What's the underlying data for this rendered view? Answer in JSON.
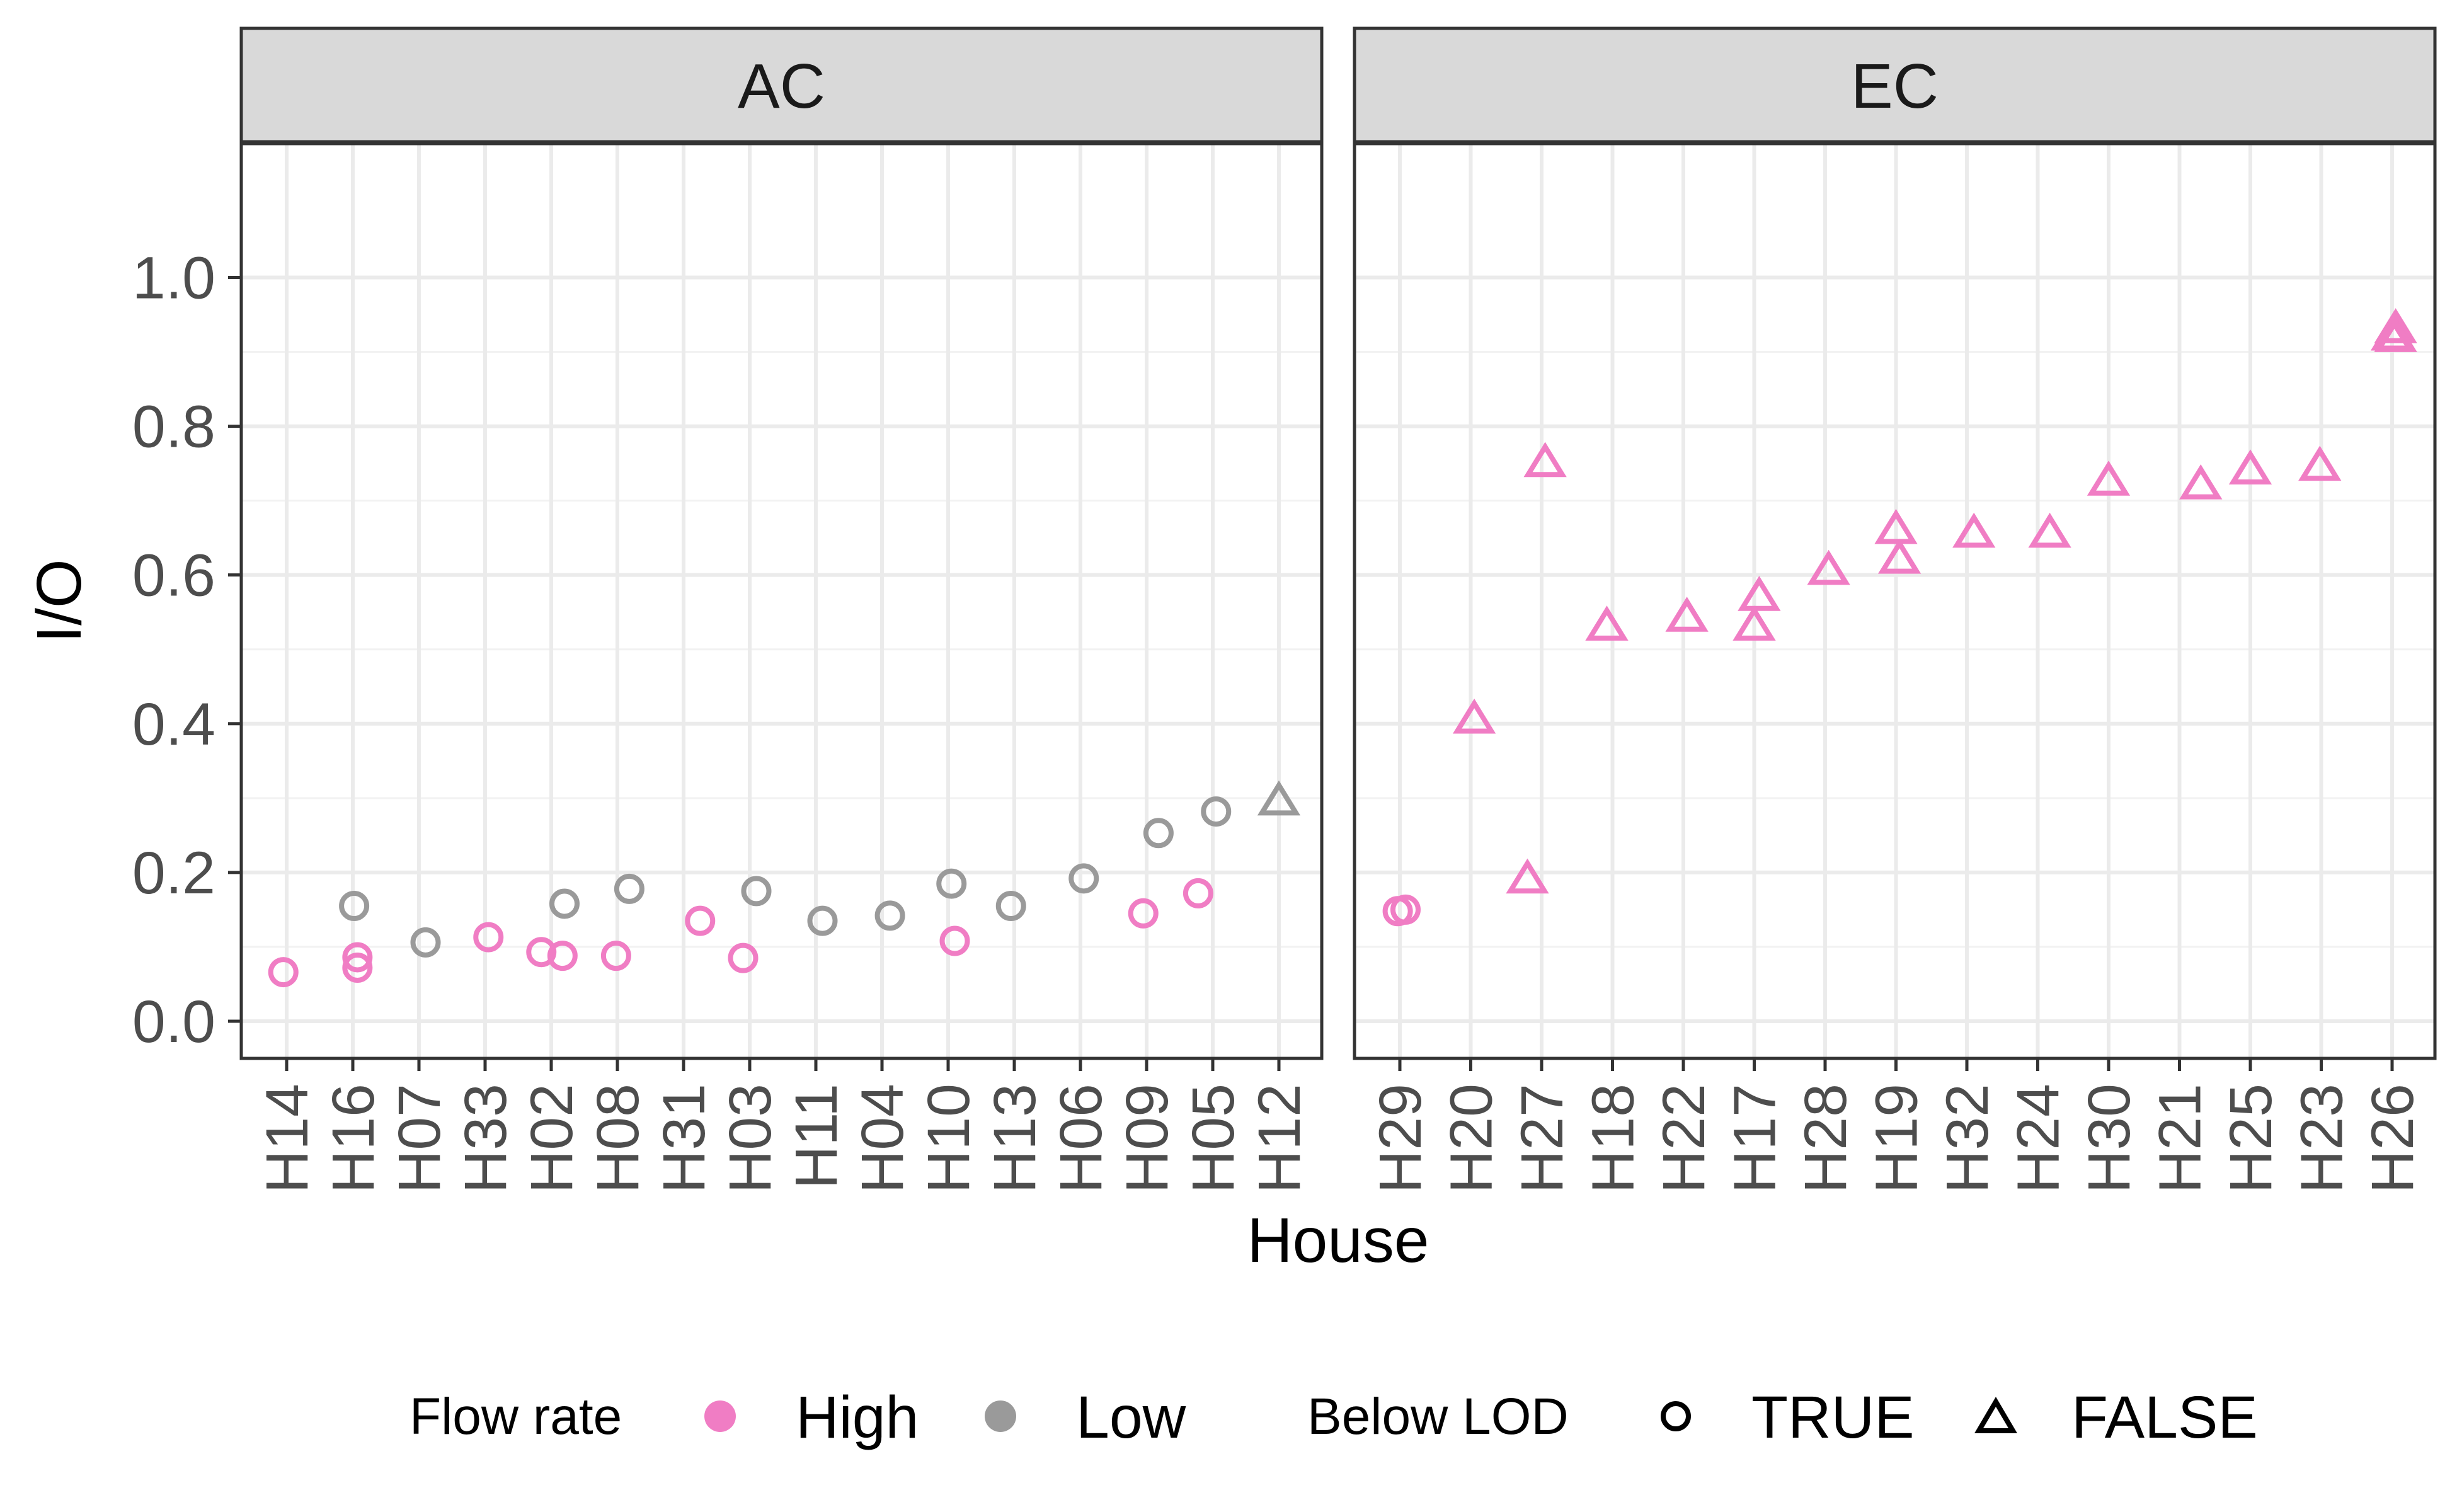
{
  "chart_data": {
    "type": "scatter",
    "ylabel": "I/O",
    "xlabel": "House",
    "ylim": [
      -0.05,
      1.18
    ],
    "y_ticks": [
      0.0,
      0.2,
      0.4,
      0.6,
      0.8,
      1.0
    ],
    "y_tick_labels": [
      "0.0",
      "0.2",
      "0.4",
      "0.6",
      "0.8",
      "1.0"
    ],
    "grid": true,
    "legend_position": "bottom",
    "colors": {
      "High": "#f07dc4",
      "Low": "#9a9a9a"
    },
    "panels": [
      {
        "name": "AC",
        "categories": [
          "H14",
          "H16",
          "H07",
          "H33",
          "H02",
          "H08",
          "H31",
          "H03",
          "H11",
          "H04",
          "H10",
          "H13",
          "H06",
          "H09",
          "H05",
          "H12"
        ],
        "points": [
          {
            "house": "H14",
            "offset": -0.05,
            "y": 0.066,
            "flow": "High",
            "lod": "TRUE"
          },
          {
            "house": "H16",
            "offset": 0.07,
            "y": 0.086,
            "flow": "High",
            "lod": "TRUE"
          },
          {
            "house": "H16",
            "offset": 0.07,
            "y": 0.072,
            "flow": "High",
            "lod": "TRUE"
          },
          {
            "house": "H16",
            "offset": 0.02,
            "y": 0.155,
            "flow": "Low",
            "lod": "TRUE"
          },
          {
            "house": "H07",
            "offset": 0.1,
            "y": 0.106,
            "flow": "Low",
            "lod": "TRUE"
          },
          {
            "house": "H33",
            "offset": 0.05,
            "y": 0.113,
            "flow": "High",
            "lod": "TRUE"
          },
          {
            "house": "H02",
            "offset": -0.15,
            "y": 0.093,
            "flow": "High",
            "lod": "TRUE"
          },
          {
            "house": "H02",
            "offset": 0.17,
            "y": 0.088,
            "flow": "High",
            "lod": "TRUE"
          },
          {
            "house": "H02",
            "offset": 0.2,
            "y": 0.158,
            "flow": "Low",
            "lod": "TRUE"
          },
          {
            "house": "H08",
            "offset": -0.02,
            "y": 0.088,
            "flow": "High",
            "lod": "TRUE"
          },
          {
            "house": "H08",
            "offset": 0.18,
            "y": 0.178,
            "flow": "Low",
            "lod": "TRUE"
          },
          {
            "house": "H31",
            "offset": 0.25,
            "y": 0.135,
            "flow": "High",
            "lod": "TRUE"
          },
          {
            "house": "H03",
            "offset": -0.1,
            "y": 0.085,
            "flow": "High",
            "lod": "TRUE"
          },
          {
            "house": "H03",
            "offset": 0.1,
            "y": 0.175,
            "flow": "Low",
            "lod": "TRUE"
          },
          {
            "house": "H11",
            "offset": 0.1,
            "y": 0.135,
            "flow": "Low",
            "lod": "TRUE"
          },
          {
            "house": "H04",
            "offset": 0.12,
            "y": 0.142,
            "flow": "Low",
            "lod": "TRUE"
          },
          {
            "house": "H10",
            "offset": 0.1,
            "y": 0.108,
            "flow": "High",
            "lod": "TRUE"
          },
          {
            "house": "H10",
            "offset": 0.05,
            "y": 0.185,
            "flow": "Low",
            "lod": "TRUE"
          },
          {
            "house": "H13",
            "offset": -0.05,
            "y": 0.155,
            "flow": "Low",
            "lod": "TRUE"
          },
          {
            "house": "H06",
            "offset": 0.05,
            "y": 0.192,
            "flow": "Low",
            "lod": "TRUE"
          },
          {
            "house": "H09",
            "offset": -0.05,
            "y": 0.145,
            "flow": "High",
            "lod": "TRUE"
          },
          {
            "house": "H09",
            "offset": 0.18,
            "y": 0.253,
            "flow": "Low",
            "lod": "TRUE"
          },
          {
            "house": "H05",
            "offset": -0.22,
            "y": 0.172,
            "flow": "High",
            "lod": "TRUE"
          },
          {
            "house": "H05",
            "offset": 0.05,
            "y": 0.282,
            "flow": "Low",
            "lod": "TRUE"
          },
          {
            "house": "H12",
            "offset": 0.0,
            "y": 0.295,
            "flow": "Low",
            "lod": "FALSE"
          }
        ]
      },
      {
        "name": "EC",
        "categories": [
          "H29",
          "H20",
          "H27",
          "H18",
          "H22",
          "H17",
          "H28",
          "H19",
          "H32",
          "H24",
          "H30",
          "H21",
          "H25",
          "H23",
          "H26"
        ],
        "points": [
          {
            "house": "H29",
            "offset": -0.03,
            "y": 0.148,
            "flow": "High",
            "lod": "TRUE"
          },
          {
            "house": "H29",
            "offset": 0.08,
            "y": 0.15,
            "flow": "High",
            "lod": "TRUE"
          },
          {
            "house": "H20",
            "offset": 0.05,
            "y": 0.405,
            "flow": "High",
            "lod": "FALSE"
          },
          {
            "house": "H27",
            "offset": -0.2,
            "y": 0.19,
            "flow": "High",
            "lod": "FALSE"
          },
          {
            "house": "H27",
            "offset": 0.05,
            "y": 0.75,
            "flow": "High",
            "lod": "FALSE"
          },
          {
            "house": "H18",
            "offset": -0.08,
            "y": 0.53,
            "flow": "High",
            "lod": "FALSE"
          },
          {
            "house": "H22",
            "offset": 0.05,
            "y": 0.542,
            "flow": "High",
            "lod": "FALSE"
          },
          {
            "house": "H17",
            "offset": 0.0,
            "y": 0.53,
            "flow": "High",
            "lod": "FALSE"
          },
          {
            "house": "H17",
            "offset": 0.07,
            "y": 0.57,
            "flow": "High",
            "lod": "FALSE"
          },
          {
            "house": "H28",
            "offset": 0.05,
            "y": 0.605,
            "flow": "High",
            "lod": "FALSE"
          },
          {
            "house": "H19",
            "offset": 0.0,
            "y": 0.66,
            "flow": "High",
            "lod": "FALSE"
          },
          {
            "house": "H19",
            "offset": 0.05,
            "y": 0.62,
            "flow": "High",
            "lod": "FALSE"
          },
          {
            "house": "H32",
            "offset": 0.1,
            "y": 0.655,
            "flow": "High",
            "lod": "FALSE"
          },
          {
            "house": "H24",
            "offset": 0.17,
            "y": 0.655,
            "flow": "High",
            "lod": "FALSE"
          },
          {
            "house": "H30",
            "offset": 0.0,
            "y": 0.725,
            "flow": "High",
            "lod": "FALSE"
          },
          {
            "house": "H21",
            "offset": 0.3,
            "y": 0.72,
            "flow": "High",
            "lod": "FALSE"
          },
          {
            "house": "H25",
            "offset": 0.0,
            "y": 0.74,
            "flow": "High",
            "lod": "FALSE"
          },
          {
            "house": "H23",
            "offset": -0.02,
            "y": 0.745,
            "flow": "High",
            "lod": "FALSE"
          },
          {
            "house": "H26",
            "offset": 0.0,
            "y": 0.92,
            "flow": "High",
            "lod": "FALSE"
          },
          {
            "house": "H26",
            "offset": 0.05,
            "y": 0.93,
            "flow": "High",
            "lod": "FALSE"
          },
          {
            "house": "H26",
            "offset": 0.05,
            "y": 0.918,
            "flow": "High",
            "lod": "FALSE"
          }
        ]
      }
    ],
    "legends": [
      {
        "title": "Flow rate",
        "items": [
          {
            "label": "High",
            "key": "High"
          },
          {
            "label": "Low",
            "key": "Low"
          }
        ]
      },
      {
        "title": "Below LOD",
        "items": [
          {
            "label": "TRUE",
            "key": "TRUE"
          },
          {
            "label": "FALSE",
            "key": "FALSE"
          }
        ]
      }
    ]
  }
}
